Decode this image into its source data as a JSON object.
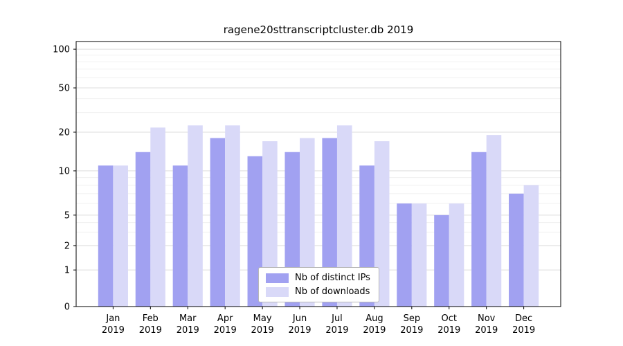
{
  "chart_data": {
    "type": "bar",
    "title": "ragene20sttranscriptcluster.db 2019",
    "categories": [
      "Jan",
      "Feb",
      "Mar",
      "Apr",
      "May",
      "Jun",
      "Jul",
      "Aug",
      "Sep",
      "Oct",
      "Nov",
      "Dec"
    ],
    "category_year": "2019",
    "series": [
      {
        "name": "Nb of distinct IPs",
        "color": "#a1a1f1",
        "values": [
          11,
          14,
          11,
          18,
          13,
          14,
          18,
          11,
          6,
          5,
          14,
          7
        ]
      },
      {
        "name": "Nb of downloads",
        "color": "#d9d9f8",
        "values": [
          11,
          22,
          23,
          23,
          17,
          18,
          23,
          17,
          6,
          6,
          19,
          8
        ]
      }
    ],
    "yticks": [
      0,
      1,
      2,
      5,
      10,
      20,
      50,
      100
    ],
    "minor_yticks": [
      3,
      4,
      6,
      7,
      8,
      9,
      30,
      40,
      60,
      70,
      80,
      90
    ],
    "ylim": [
      0,
      110
    ],
    "yscale": "log-like",
    "grid": true,
    "xlabel": "",
    "ylabel": "",
    "legend_position": "lower center",
    "colors": {
      "major_grid": "#dedede",
      "minor_grid": "#f0f0f0",
      "axis": "#000000",
      "background": "#ffffff"
    }
  }
}
